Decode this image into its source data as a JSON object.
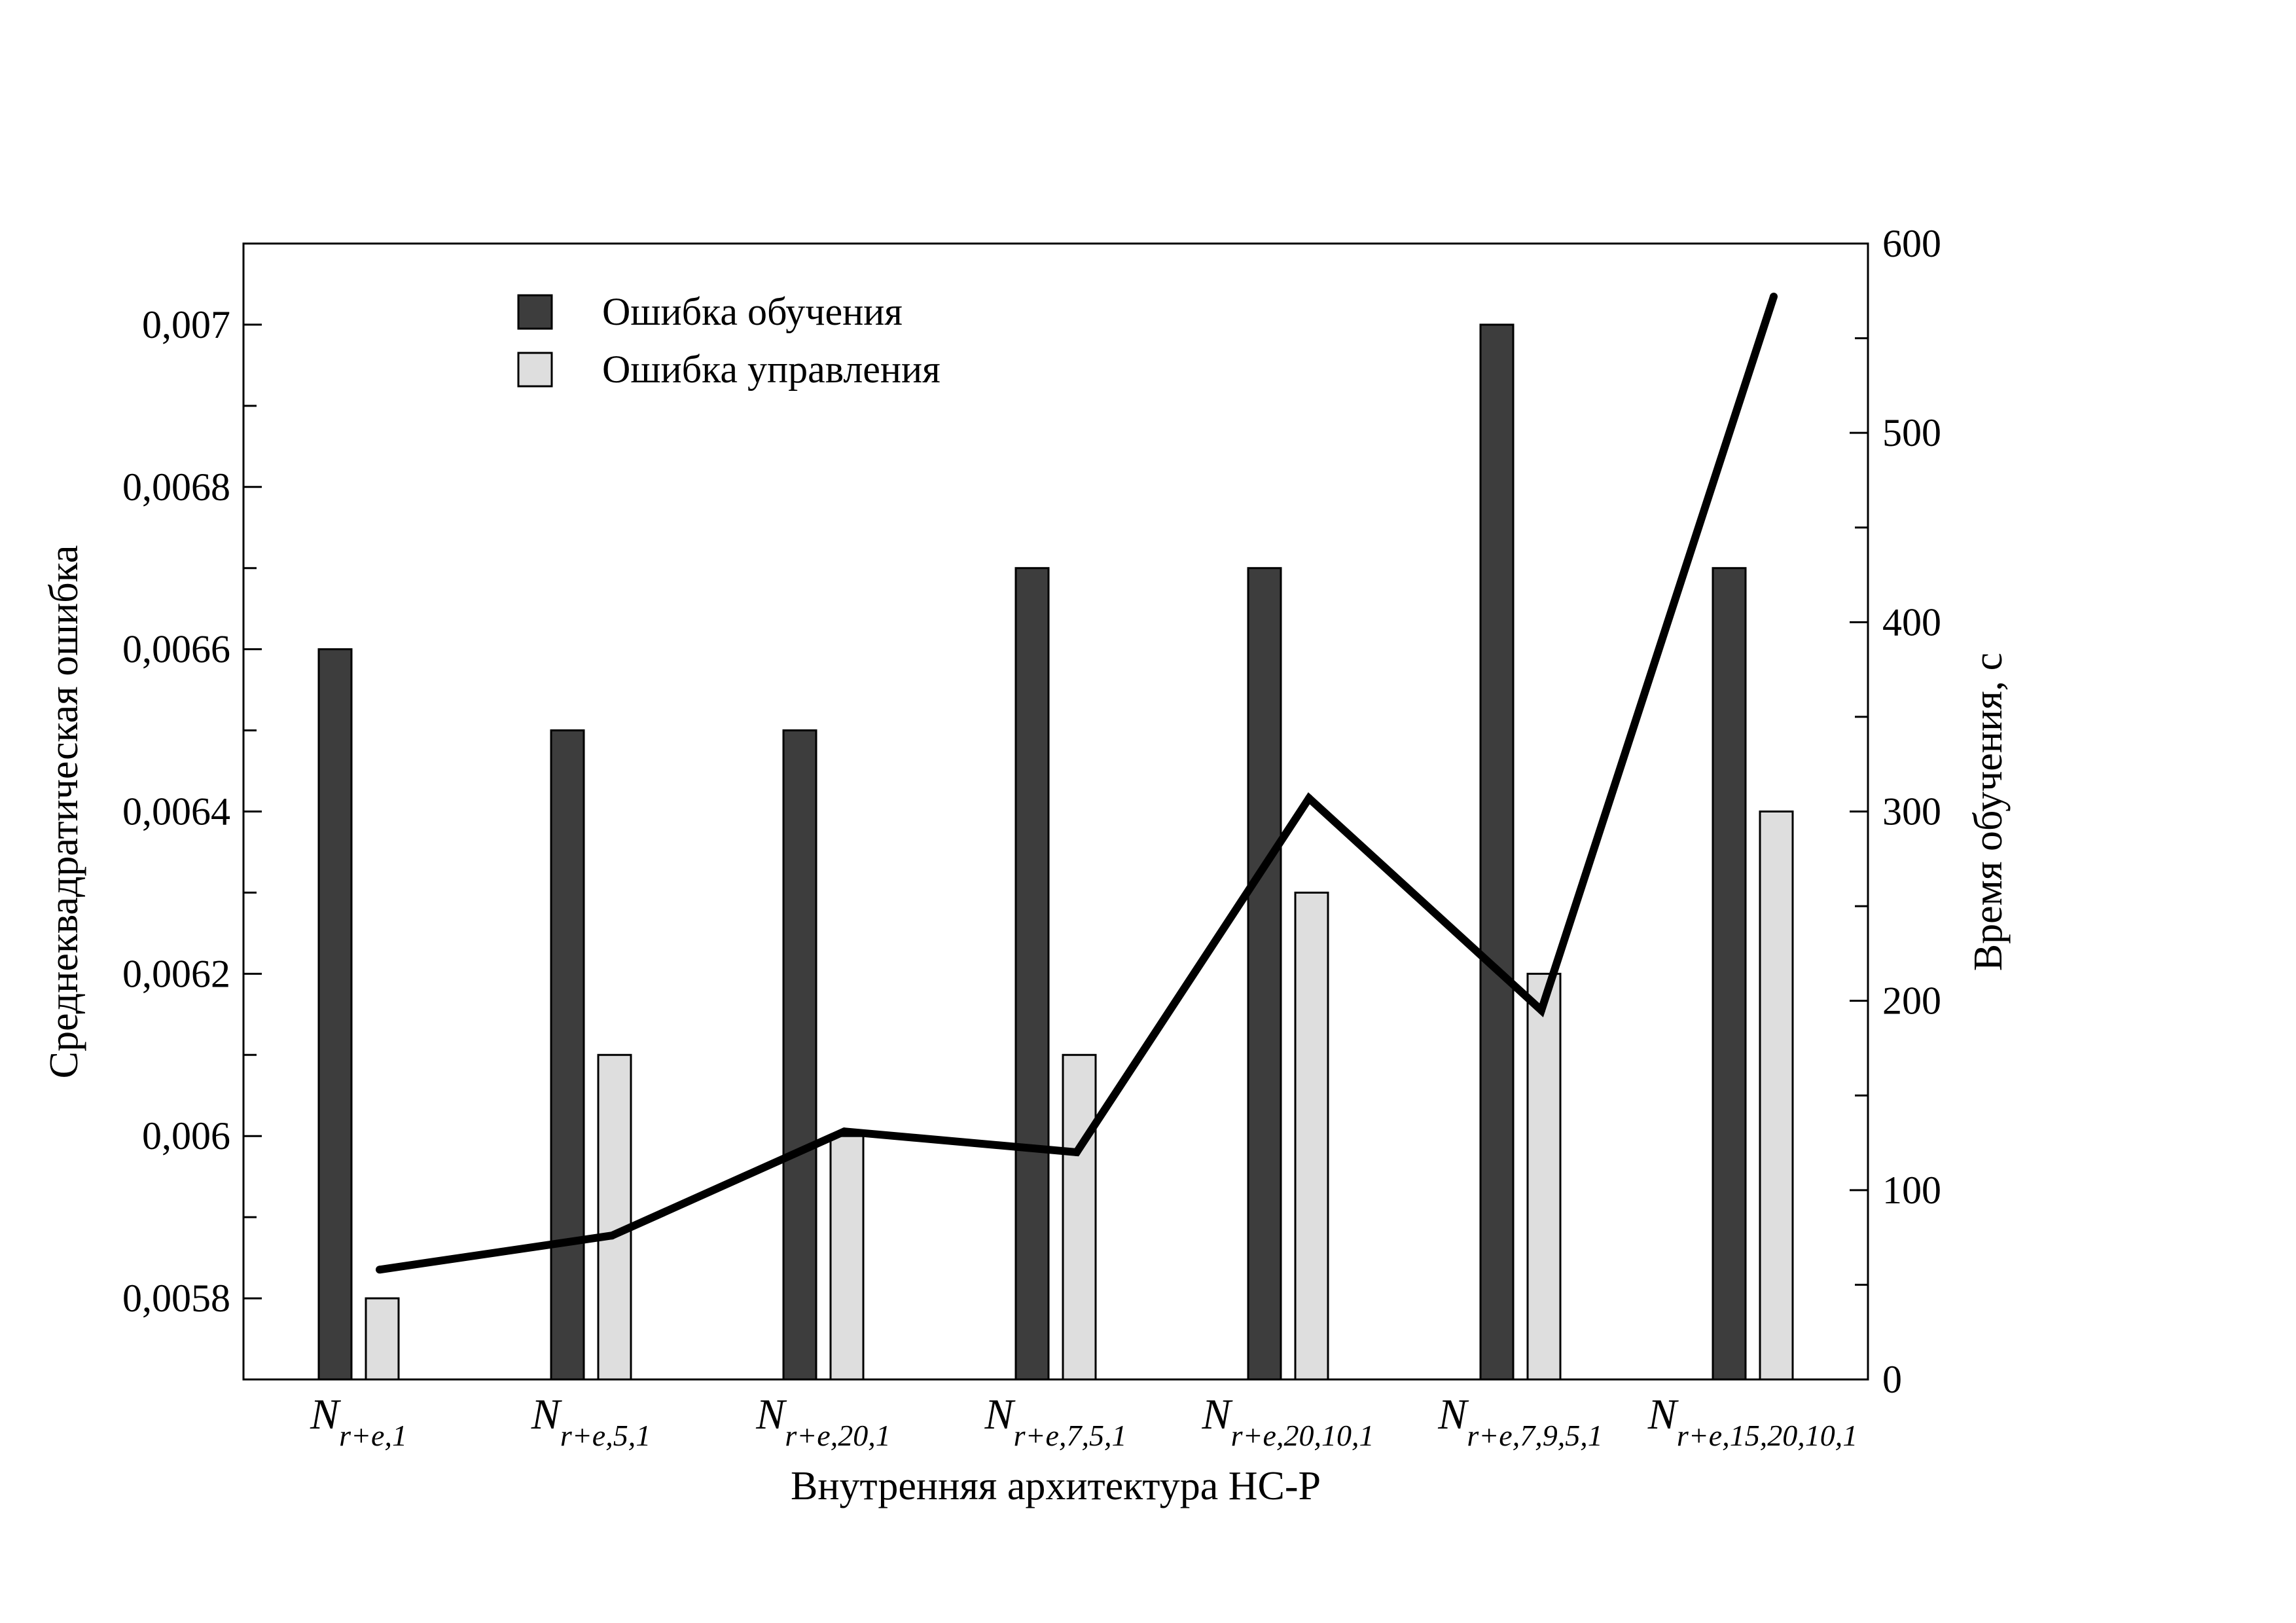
{
  "chart_data": {
    "type": "bar",
    "categories": [
      {
        "main": "N",
        "sub": "r+e,1"
      },
      {
        "main": "N",
        "sub": "r+e,5,1"
      },
      {
        "main": "N",
        "sub": "r+e,20,1"
      },
      {
        "main": "N",
        "sub": "r+e,7,5,1"
      },
      {
        "main": "N",
        "sub": "r+e,20,10,1"
      },
      {
        "main": "N",
        "sub": "r+e,7,9,5,1"
      },
      {
        "main": "N",
        "sub": "r+e,15,20,10,1"
      }
    ],
    "series": [
      {
        "name": "Ошибка обучения",
        "kind": "bar",
        "axis": "left",
        "color": "#3d3d3d",
        "values": [
          0.0066,
          0.0065,
          0.0065,
          0.0067,
          0.0067,
          0.007,
          0.0067
        ]
      },
      {
        "name": "Ошибка управления",
        "kind": "bar",
        "axis": "left",
        "color": "#dedede",
        "values": [
          0.0058,
          0.0061,
          0.006,
          0.0061,
          0.0063,
          0.0062,
          0.0064
        ]
      },
      {
        "kind": "line",
        "axis": "right",
        "color": "#000000",
        "values": [
          58,
          76,
          131,
          120,
          307,
          195,
          572
        ]
      }
    ],
    "xlabel": "Внутренняя архитектура НС-Р",
    "ylabel": "Среднеквадратическая ошибка",
    "y2label": "Время обучения, с",
    "ylim": [
      0.0057,
      0.0071
    ],
    "yticks": [
      0.0058,
      0.006,
      0.0062,
      0.0064,
      0.0066,
      0.0068,
      0.007
    ],
    "ytick_labels": [
      "0,0058",
      "0,006",
      "0,0062",
      "0,0064",
      "0,0066",
      "0,0068",
      "0,007"
    ],
    "y2lim": [
      0,
      600
    ],
    "y2ticks": [
      0,
      100,
      200,
      300,
      400,
      500,
      600
    ],
    "y2tick_labels": [
      "0",
      "100",
      "200",
      "300",
      "400",
      "500",
      "600"
    ],
    "grid": false,
    "legend_position": "top-left"
  }
}
